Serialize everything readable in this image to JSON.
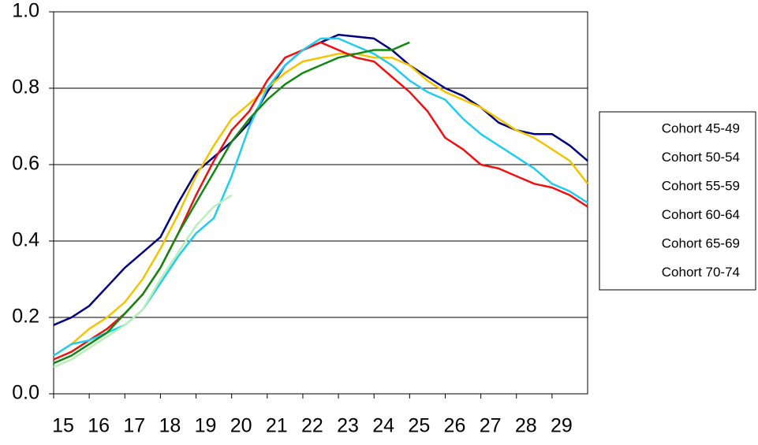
{
  "chart_data": {
    "type": "line",
    "x": [
      15,
      15.5,
      16,
      16.5,
      17,
      17.5,
      18,
      18.5,
      19,
      19.5,
      20,
      20.5,
      21,
      21.5,
      22,
      22.5,
      23,
      23.5,
      24,
      24.5,
      25,
      25.5,
      26,
      26.5,
      27,
      27.5,
      28,
      28.5,
      29,
      29.5,
      30
    ],
    "series": [
      {
        "name": "Cohort 45-49",
        "color": "#000080",
        "values": [
          0.18,
          0.2,
          0.23,
          0.28,
          0.33,
          0.37,
          0.41,
          0.5,
          0.58,
          0.62,
          0.66,
          0.71,
          0.79,
          0.86,
          0.9,
          0.92,
          0.94,
          0.935,
          0.93,
          0.9,
          0.86,
          0.83,
          0.8,
          0.78,
          0.75,
          0.71,
          0.69,
          0.68,
          0.68,
          0.65,
          0.61
        ]
      },
      {
        "name": "Cohort 50-54",
        "color": "#f5c400",
        "values": [
          0.1,
          0.13,
          0.17,
          0.2,
          0.24,
          0.3,
          0.38,
          0.47,
          0.57,
          0.65,
          0.72,
          0.76,
          0.8,
          0.84,
          0.87,
          0.88,
          0.89,
          0.89,
          0.88,
          0.88,
          0.86,
          0.82,
          0.79,
          0.77,
          0.75,
          0.72,
          0.69,
          0.67,
          0.64,
          0.61,
          0.55
        ]
      },
      {
        "name": "Cohort 55-59",
        "color": "#ee1111",
        "values": [
          0.09,
          0.11,
          0.14,
          0.17,
          0.21,
          0.26,
          0.33,
          0.42,
          0.52,
          0.61,
          0.69,
          0.74,
          0.82,
          0.88,
          0.9,
          0.92,
          0.9,
          0.88,
          0.87,
          0.83,
          0.79,
          0.74,
          0.67,
          0.64,
          0.6,
          0.59,
          0.57,
          0.55,
          0.54,
          0.52,
          0.49
        ]
      },
      {
        "name": "Cohort 60-64",
        "color": "#22ccee",
        "values": [
          0.1,
          0.13,
          0.14,
          0.16,
          0.18,
          0.22,
          0.29,
          0.36,
          0.42,
          0.46,
          0.57,
          0.7,
          0.8,
          0.86,
          0.9,
          0.93,
          0.93,
          0.91,
          0.89,
          0.86,
          0.82,
          0.79,
          0.77,
          0.72,
          0.68,
          0.65,
          0.62,
          0.59,
          0.55,
          0.53,
          0.5
        ]
      },
      {
        "name": "Cohort 65-69",
        "color": "#118811",
        "values": [
          0.08,
          0.1,
          0.13,
          0.16,
          0.21,
          0.26,
          0.33,
          0.42,
          0.5,
          0.58,
          0.66,
          0.72,
          0.77,
          0.81,
          0.84,
          0.86,
          0.88,
          0.89,
          0.9,
          0.9,
          0.92,
          null,
          null,
          null,
          null,
          null,
          null,
          null,
          null,
          null,
          null
        ]
      },
      {
        "name": "Cohort 70-74",
        "color": "#b8f0b8",
        "values": [
          0.07,
          0.09,
          0.12,
          0.15,
          0.18,
          0.22,
          0.3,
          0.37,
          0.44,
          0.49,
          0.52,
          null,
          null,
          null,
          null,
          null,
          null,
          null,
          null,
          null,
          null,
          null,
          null,
          null,
          null,
          null,
          null,
          null,
          null,
          null,
          null
        ]
      }
    ],
    "xlim": [
      15,
      30
    ],
    "xticks": [
      15,
      16,
      17,
      18,
      19,
      20,
      21,
      22,
      23,
      24,
      25,
      26,
      27,
      28,
      29
    ],
    "ylim": [
      0,
      1
    ],
    "yticks": [
      {
        "value": 0,
        "label": "0.0"
      },
      0.2,
      0.4,
      0.6,
      0.8,
      {
        "value": 1,
        "label": "1.0"
      }
    ],
    "grid": true,
    "legend": "right"
  }
}
